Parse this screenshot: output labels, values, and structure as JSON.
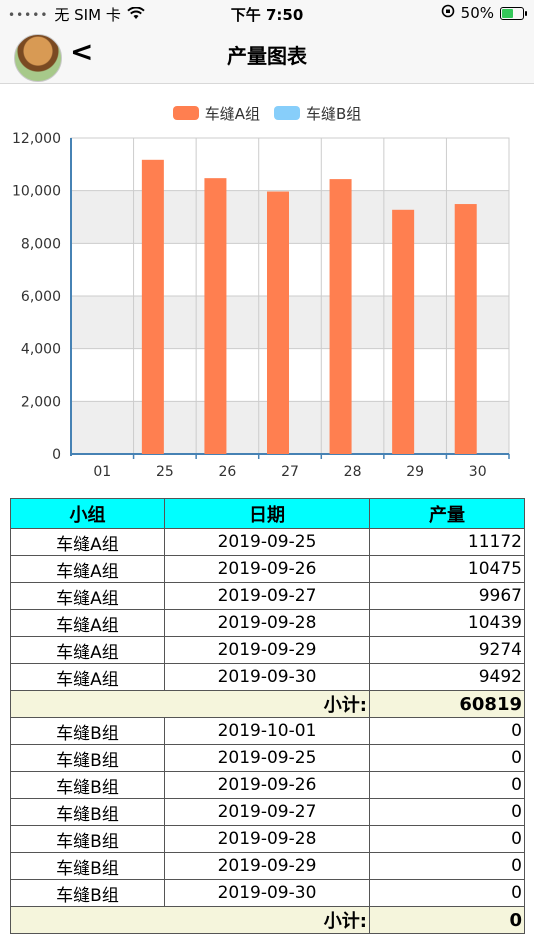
{
  "status_bar": {
    "carrier": "无 SIM 卡",
    "time": "下午 7:50",
    "battery": "50%",
    "battery_level": 0.5
  },
  "nav": {
    "back_icon": "<",
    "title": "产量图表"
  },
  "colors": {
    "series_a": "#ff7f50",
    "series_b": "#87cefa",
    "header_bg": "#00ffff",
    "subtotal_bg": "#f5f5dc"
  },
  "chart_data": {
    "type": "bar",
    "categories": [
      "01",
      "25",
      "26",
      "27",
      "28",
      "29",
      "30"
    ],
    "series": [
      {
        "name": "车缝A组",
        "values": [
          0,
          11172,
          10475,
          9967,
          10439,
          9274,
          9492
        ]
      },
      {
        "name": "车缝B组",
        "values": [
          0,
          0,
          0,
          0,
          0,
          0,
          0
        ]
      }
    ],
    "ylim": [
      0,
      12000
    ],
    "yticks": [
      "0",
      "2,000",
      "4,000",
      "6,000",
      "8,000",
      "10,000",
      "12,000"
    ],
    "legend": "top",
    "grid": true
  },
  "table": {
    "headers": [
      "小组",
      "日期",
      "产量"
    ],
    "groups": [
      {
        "rows": [
          [
            "车缝A组",
            "2019-09-25",
            "11172"
          ],
          [
            "车缝A组",
            "2019-09-26",
            "10475"
          ],
          [
            "车缝A组",
            "2019-09-27",
            "9967"
          ],
          [
            "车缝A组",
            "2019-09-28",
            "10439"
          ],
          [
            "车缝A组",
            "2019-09-29",
            "9274"
          ],
          [
            "车缝A组",
            "2019-09-30",
            "9492"
          ]
        ],
        "subtotal_label": "小计:",
        "subtotal": "60819"
      },
      {
        "rows": [
          [
            "车缝B组",
            "2019-10-01",
            "0"
          ],
          [
            "车缝B组",
            "2019-09-25",
            "0"
          ],
          [
            "车缝B组",
            "2019-09-26",
            "0"
          ],
          [
            "车缝B组",
            "2019-09-27",
            "0"
          ],
          [
            "车缝B组",
            "2019-09-28",
            "0"
          ],
          [
            "车缝B组",
            "2019-09-29",
            "0"
          ],
          [
            "车缝B组",
            "2019-09-30",
            "0"
          ]
        ],
        "subtotal_label": "小计:",
        "subtotal": "0"
      }
    ]
  }
}
